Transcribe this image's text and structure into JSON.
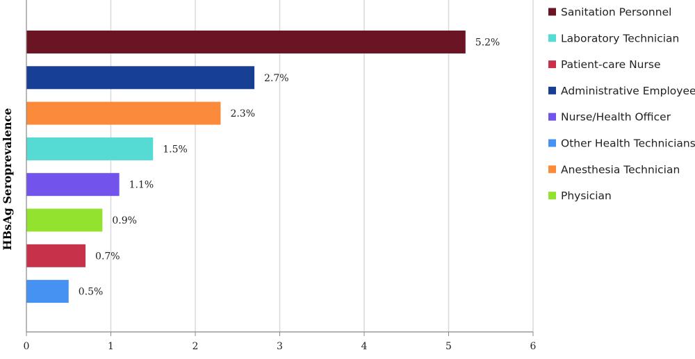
{
  "chart_data": {
    "type": "bar",
    "orientation": "horizontal",
    "title": "",
    "xlabel": "",
    "ylabel": "HBsAg Seroprevalence",
    "xlim": [
      0,
      6
    ],
    "xticks": [
      "0",
      "1",
      "2",
      "3",
      "4",
      "5",
      "6"
    ],
    "grid": "vertical",
    "legend_position": "right",
    "bars": [
      {
        "category": "Sanitation Personnel",
        "value": 5.2,
        "label": "5.2%",
        "color": "#6b1424"
      },
      {
        "category": "Administrative Employee",
        "value": 2.7,
        "label": "2.7%",
        "color": "#173f94"
      },
      {
        "category": "Anesthesia Technician",
        "value": 2.3,
        "label": "2.3%",
        "color": "#fb8a3a"
      },
      {
        "category": "Laboratory Technician",
        "value": 1.5,
        "label": "1.5%",
        "color": "#55dbd4"
      },
      {
        "category": "Nurse/Health Officer",
        "value": 1.1,
        "label": "1.1%",
        "color": "#7253ec"
      },
      {
        "category": "Physician",
        "value": 0.9,
        "label": "0.9%",
        "color": "#93e22e"
      },
      {
        "category": "Patient-care Nurse",
        "value": 0.7,
        "label": "0.7%",
        "color": "#c8314a"
      },
      {
        "category": "Other Health Technicians",
        "value": 0.5,
        "label": "0.5%",
        "color": "#4592f2"
      }
    ],
    "legend": [
      {
        "name": "Sanitation Personnel",
        "color": "#6b1424"
      },
      {
        "name": "Laboratory Technician",
        "color": "#55dbd4"
      },
      {
        "name": "Patient-care Nurse",
        "color": "#c8314a"
      },
      {
        "name": "Administrative Employee",
        "color": "#173f94"
      },
      {
        "name": "Nurse/Health Officer",
        "color": "#7253ec"
      },
      {
        "name": "Other Health Technicians",
        "color": "#4592f2"
      },
      {
        "name": "Anesthesia Technician",
        "color": "#fb8a3a"
      },
      {
        "name": "Physician",
        "color": "#93e22e"
      }
    ],
    "grid_color": "#d9d9d9",
    "axis_color": "#888888"
  }
}
